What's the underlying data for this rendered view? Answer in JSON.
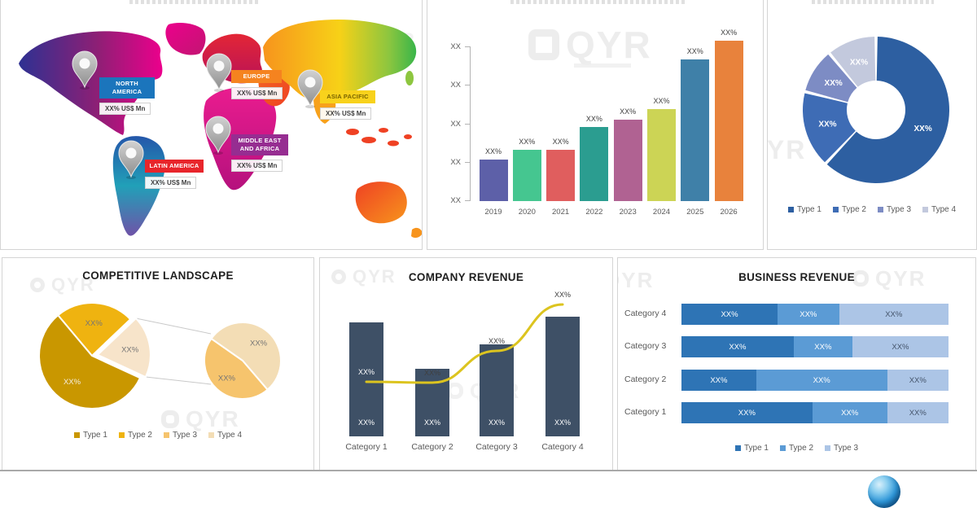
{
  "page": {
    "watermark_text": "QYR"
  },
  "chart_data": [
    {
      "id": "regional-map",
      "type": "map",
      "regions": [
        {
          "name": "NORTH AMERICA",
          "value": "XX% US$ Mn",
          "header_color": "#1b75bc",
          "header_text_color": "#ffffff"
        },
        {
          "name": "EUROPE",
          "value": "XX% US$ Mn",
          "header_color": "#f5831f",
          "header_text_color": "#ffffff"
        },
        {
          "name": "ASIA PACIFIC",
          "value": "XX% US$ Mn",
          "header_color": "#f8d21c",
          "header_text_color": "#7a6500"
        },
        {
          "name": "MIDDLE EAST AND AFRICA",
          "value": "XX% US$ Mn",
          "header_color": "#962d91",
          "header_text_color": "#ffffff"
        },
        {
          "name": "LATIN AMERICA",
          "value": "XX% US$ Mn",
          "header_color": "#e8252b",
          "header_text_color": "#ffffff"
        }
      ]
    },
    {
      "id": "market-growth-bar",
      "type": "bar",
      "categories": [
        "2019",
        "2020",
        "2021",
        "2022",
        "2023",
        "2024",
        "2025",
        "2026"
      ],
      "values": [
        51,
        63,
        63,
        91,
        100,
        113,
        174,
        197
      ],
      "bar_labels": [
        "XX%",
        "XX%",
        "XX%",
        "XX%",
        "XX%",
        "XX%",
        "XX%",
        "XX%"
      ],
      "colors": [
        "#5d60a8",
        "#45c690",
        "#e05e5e",
        "#2b9d90",
        "#b06292",
        "#ccd455",
        "#3f80a8",
        "#e8823c"
      ],
      "yticks": [
        "XX",
        "XX",
        "XX",
        "XX",
        "XX"
      ],
      "xlabel": "",
      "ylabel": "",
      "grid": false,
      "ylim": [
        0,
        210
      ]
    },
    {
      "id": "market-share-donut",
      "type": "pie",
      "donut_hole_ratio": 0.4,
      "slices": [
        {
          "label": "Type 1",
          "value": 62,
          "color": "#2d5fa1",
          "data_label": "XX%"
        },
        {
          "label": "Type 2",
          "value": 17,
          "color": "#3e6cb5",
          "data_label": "XX%"
        },
        {
          "label": "Type 3",
          "value": 10,
          "color": "#7d8cc4",
          "data_label": "XX%"
        },
        {
          "label": "Type 4",
          "value": 11,
          "color": "#c3c9dd",
          "data_label": "XX%"
        }
      ],
      "legend": [
        "Type 1",
        "Type 2",
        "Type 3",
        "Type 4"
      ],
      "legend_position": "bottom"
    },
    {
      "id": "competitive-landscape",
      "type": "pie-of-pie",
      "title": "COMPETITIVE LANDSCAPE",
      "main_pie": [
        {
          "label": "Type 2",
          "value": 24,
          "color": "#efb310",
          "data_label": "XX%",
          "label_color": "#757575"
        },
        {
          "label": "Type 3 + Type 4",
          "value": 19,
          "color": "#f7e4ca",
          "data_label": "XX%",
          "label_color": "#757575",
          "exploded": true
        },
        {
          "label": "Type 1",
          "value": 57,
          "color": "#c99700",
          "data_label": "XX%",
          "label_color": "#f5efdf"
        }
      ],
      "secondary_pie": [
        {
          "label": "Type 4",
          "value": 54,
          "color": "#f3ddb5",
          "data_label": "XX%",
          "label_color": "#757575"
        },
        {
          "label": "Type 3",
          "value": 46,
          "color": "#f6c46d",
          "data_label": "XX%",
          "label_color": "#757575"
        }
      ],
      "legend": [
        {
          "label": "Type 1",
          "color": "#c99700"
        },
        {
          "label": "Type 2",
          "color": "#efb310"
        },
        {
          "label": "Type 3",
          "color": "#f6c46d"
        },
        {
          "label": "Type 4",
          "color": "#f3ddb5"
        }
      ]
    },
    {
      "id": "company-revenue",
      "type": "bar-line",
      "title": "COMPANY REVENUE",
      "categories": [
        "Category 1",
        "Category 2",
        "Category 3",
        "Category 4"
      ],
      "bar_values": [
        140,
        83,
        113,
        147
      ],
      "bar_color": "#3e5066",
      "bar_labels": [
        "XX%",
        "XX%",
        "XX%",
        "XX%"
      ],
      "line_values": [
        67,
        66,
        105,
        162
      ],
      "line_color": "#dcc41f",
      "line_point_labels": [
        "XX%",
        "XX%",
        "XX%",
        "XX%"
      ],
      "line_point_label_colors": [
        "#ffffff",
        "#404040",
        "#404040",
        "#404040"
      ],
      "ylim": [
        0,
        175
      ]
    },
    {
      "id": "business-revenue",
      "type": "stacked-bar-horizontal",
      "title": "BUSINESS REVENUE",
      "categories": [
        "Category 4",
        "Category 3",
        "Category 2",
        "Category 1"
      ],
      "series": [
        {
          "name": "Type 1",
          "color": "#2e74b5",
          "values": [
            36,
            42,
            28,
            49
          ],
          "labels": [
            "XX%",
            "XX%",
            "XX%",
            "XX%"
          ]
        },
        {
          "name": "Type 2",
          "color": "#5b9bd5",
          "values": [
            23,
            22,
            49,
            28
          ],
          "labels": [
            "XX%",
            "XX%",
            "XX%",
            "XX%"
          ]
        },
        {
          "name": "Type 3",
          "color": "#acc5e6",
          "values": [
            41,
            36,
            23,
            23
          ],
          "labels": [
            "XX%",
            "XX%",
            "XX%",
            "XX%"
          ]
        }
      ],
      "legend": [
        "Type 1",
        "Type 2",
        "Type 3"
      ],
      "xlim": [
        0,
        100
      ]
    }
  ]
}
